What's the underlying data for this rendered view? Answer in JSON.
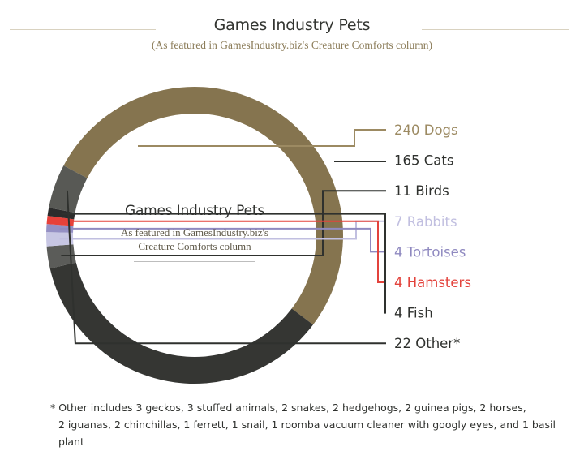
{
  "header": {
    "title": "Games Industry Pets",
    "subtitle": "(As featured in GamesIndustry.biz's Creature Comforts column)"
  },
  "center": {
    "title": "Games Industry Pets",
    "subtitle_line1": "As featured in GamesIndustry.biz's",
    "subtitle_line2": "Creature Comforts column"
  },
  "footnote": {
    "line1": "* Other includes 3 geckos, 3 stuffed animals, 2 snakes, 2 hedgehogs, 2 guinea pigs, 2 horses,",
    "line2": "2 iguanas, 2 chinchillas, 1 ferrett,  1 snail, 1 roomba vacuum cleaner with googly eyes, and 1 basil plant"
  },
  "chart_data": {
    "type": "pie",
    "style": "donut",
    "title": "Games Industry Pets",
    "subtitle": "As featured in GamesIndustry.biz's Creature Comforts column",
    "categories": [
      "Dogs",
      "Cats",
      "Birds",
      "Rabbits",
      "Tortoises",
      "Hamsters",
      "Fish",
      "Other*"
    ],
    "values": [
      240,
      165,
      11,
      7,
      4,
      4,
      4,
      22
    ],
    "labels": [
      "240 Dogs",
      "165 Cats",
      "11 Birds",
      "7 Rabbits",
      "4 Tortoises",
      "4 Hamsters",
      "4 Fish",
      "22 Other*"
    ],
    "colors": [
      "#85744f",
      "#353633",
      "#5b5c59",
      "#c7c6e3",
      "#9590c4",
      "#e7413a",
      "#2c2c2c",
      "#585955"
    ],
    "label_colors": [
      "#9c8a62",
      "#2f312e",
      "#2f312e",
      "#c1bfe0",
      "#8f89c0",
      "#e3433c",
      "#2f312e",
      "#2f312e"
    ]
  }
}
